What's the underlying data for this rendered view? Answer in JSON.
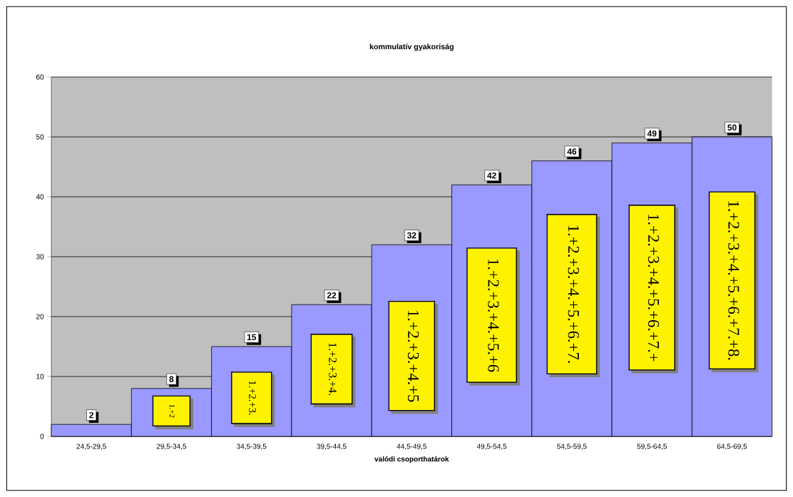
{
  "chart_data": {
    "type": "bar",
    "title": "kommulatív gyakoriság",
    "xlabel": "valódi csoporthatárok",
    "categories": [
      "24,5-29,5",
      "29,5-34,5",
      "34,5-39,5",
      "39,5-44,5",
      "44,5-49,5",
      "49,5-54,5",
      "54,5-59,5",
      "59,5-64,5",
      "64,5-69,5"
    ],
    "values": [
      2,
      8,
      15,
      22,
      32,
      42,
      46,
      49,
      50
    ],
    "color": "#9999ff",
    "data_labels": true,
    "ylim": [
      0,
      60
    ],
    "yticks": [
      0,
      10,
      20,
      30,
      40,
      50,
      60
    ],
    "grid": "y",
    "annotations": [
      "1.+2",
      "1.+2.+3.",
      "1.+2.+3.+4.",
      "1.+2.+3.+4.+5",
      "1.+2.+3.+4.+5.+6",
      "1.+2.+3.+4.+5.+6.+7.",
      "1.+2.+3.+4.+5.+6.+7.+",
      "1.+2.+3.+4.+5.+6.+7.+8."
    ]
  }
}
